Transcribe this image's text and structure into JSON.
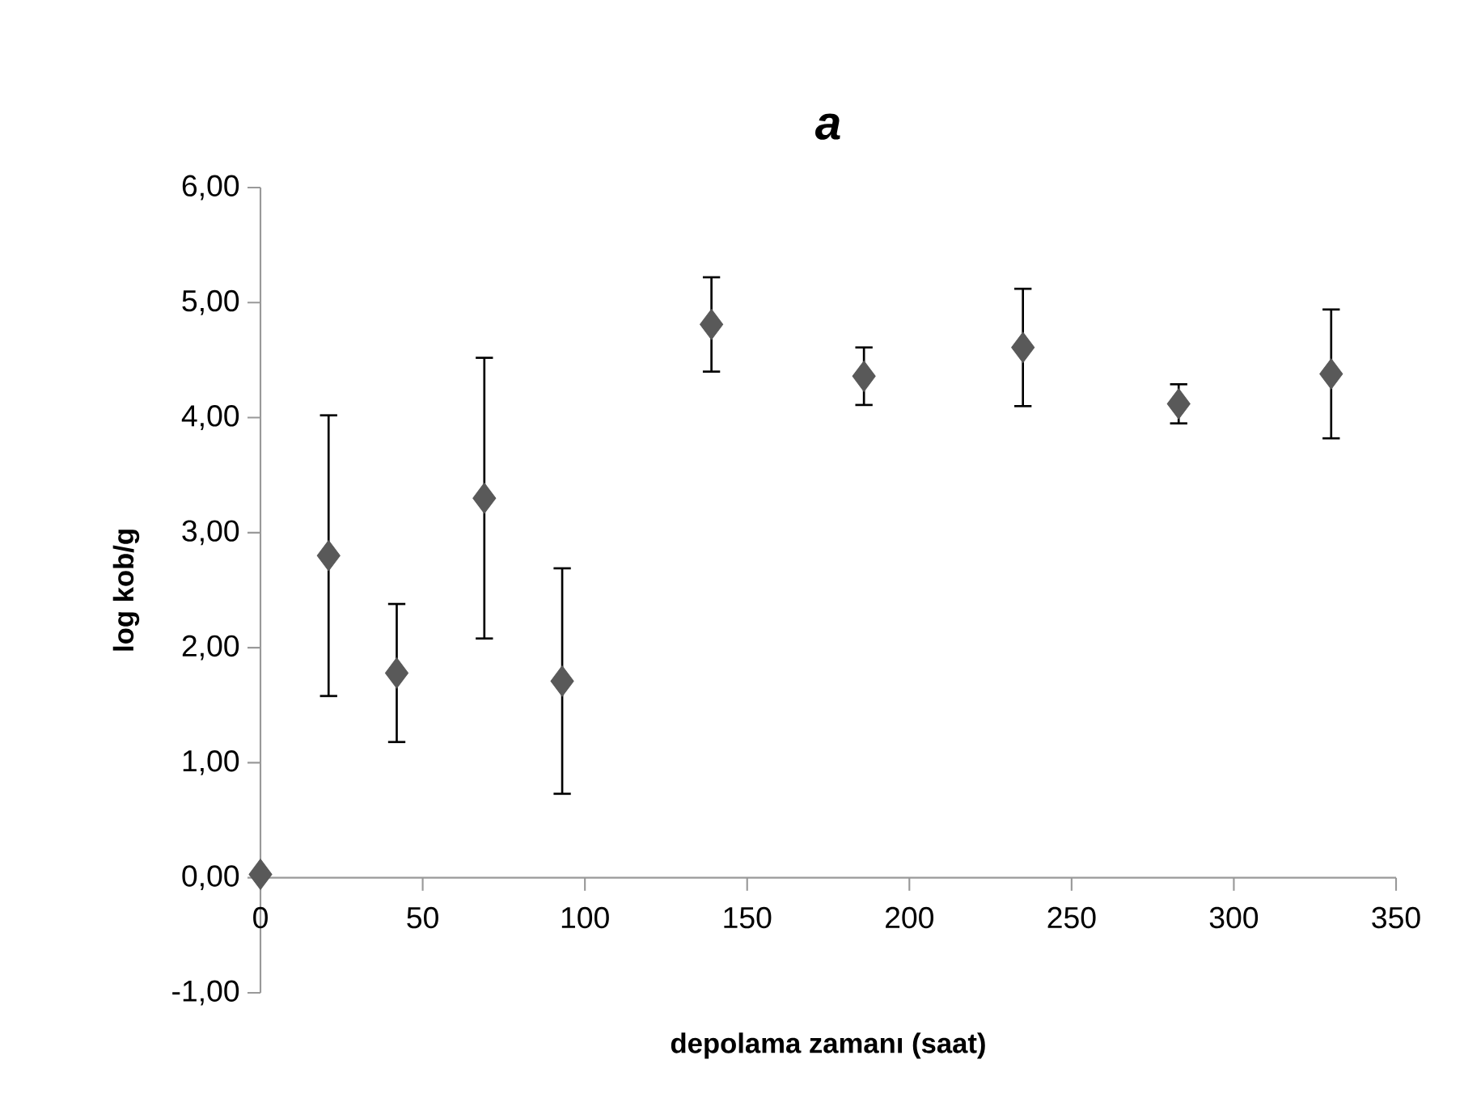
{
  "chart_data": {
    "type": "scatter",
    "title": "*a*",
    "xlabel": "depolama zamanı (saat)",
    "ylabel": "log kob/g",
    "x": [
      0,
      21,
      42,
      69,
      93,
      139,
      186,
      235,
      283,
      330
    ],
    "values": [
      0.03,
      2.8,
      1.78,
      3.3,
      1.71,
      4.81,
      4.36,
      4.61,
      4.12,
      4.38
    ],
    "errors": [
      null,
      1.22,
      0.6,
      1.22,
      0.98,
      0.41,
      0.25,
      0.51,
      0.17,
      0.56
    ],
    "color": "#595959",
    "marker": "diamond",
    "xlim": [
      0,
      350
    ],
    "xticks": [
      0,
      50,
      100,
      150,
      200,
      250,
      300,
      350
    ],
    "ylim": [
      -1,
      6
    ],
    "yticks": [
      {
        "value": -1,
        "label": "-1,00"
      },
      {
        "value": 0,
        "label": "0,00"
      },
      {
        "value": 1,
        "label": "1,00"
      },
      {
        "value": 2,
        "label": "2,00"
      },
      {
        "value": 3,
        "label": "3,00"
      },
      {
        "value": 4,
        "label": "4,00"
      },
      {
        "value": 5,
        "label": "5,00"
      },
      {
        "value": 6,
        "label": "6,00"
      }
    ]
  }
}
